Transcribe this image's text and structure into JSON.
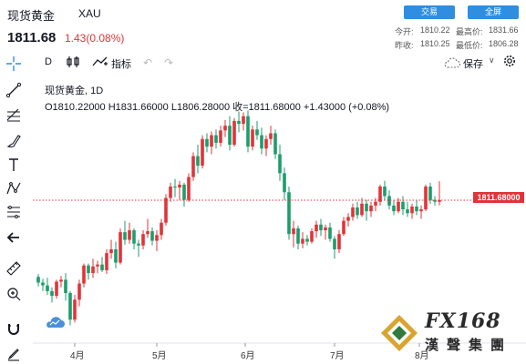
{
  "header": {
    "title": "现货黄金",
    "symbol": "XAU",
    "price": "1811.68",
    "change": "1.43(0.08%)",
    "trade_button": "交易",
    "fullscreen_button": "全屏",
    "open_label": "今开:",
    "open_value": "1810.22",
    "high_label": "最高价:",
    "high_value": "1831.66",
    "prev_close_label": "昨收:",
    "prev_close_value": "1810.25",
    "low_label": "最低价:",
    "low_value": "1806.28"
  },
  "toolbar": {
    "interval": "D",
    "indicators": "指标",
    "save": "保存"
  },
  "legend": {
    "line1": "现货黄金, 1D",
    "line2": "O1810.22000 H1831.66000 L1806.28000 收=1811.68000 +1.43000 (+0.08%)"
  },
  "price_label": "1811.68000",
  "watermark": "FX168 漢聲集團",
  "colors": {
    "up": "#e0343a",
    "down": "#1e9c6c",
    "accent": "#2f8ee0",
    "price_line": "#e0343a"
  },
  "chart_data": {
    "type": "candlestick",
    "title": "现货黄金, 1D",
    "x_ticks": [
      "4月",
      "5月",
      "6月",
      "7月",
      "8月"
    ],
    "ylim": [
      1670,
      1915
    ],
    "last_price": 1811.68,
    "candles": [
      [
        1731,
        1734,
        1721,
        1725
      ],
      [
        1725,
        1729,
        1716,
        1722
      ],
      [
        1722,
        1730,
        1712,
        1716
      ],
      [
        1716,
        1720,
        1704,
        1711
      ],
      [
        1711,
        1728,
        1708,
        1726
      ],
      [
        1726,
        1732,
        1720,
        1728
      ],
      [
        1728,
        1735,
        1706,
        1714
      ],
      [
        1714,
        1716,
        1680,
        1686
      ],
      [
        1686,
        1712,
        1683,
        1707
      ],
      [
        1707,
        1728,
        1700,
        1724
      ],
      [
        1724,
        1745,
        1720,
        1743
      ],
      [
        1743,
        1745,
        1728,
        1735
      ],
      [
        1735,
        1750,
        1730,
        1742
      ],
      [
        1742,
        1748,
        1735,
        1744
      ],
      [
        1744,
        1752,
        1736,
        1738
      ],
      [
        1738,
        1760,
        1734,
        1756
      ],
      [
        1756,
        1770,
        1750,
        1760
      ],
      [
        1760,
        1768,
        1740,
        1746
      ],
      [
        1746,
        1782,
        1744,
        1778
      ],
      [
        1778,
        1790,
        1765,
        1770
      ],
      [
        1770,
        1788,
        1766,
        1780
      ],
      [
        1780,
        1782,
        1760,
        1766
      ],
      [
        1766,
        1770,
        1752,
        1764
      ],
      [
        1764,
        1780,
        1760,
        1776
      ],
      [
        1776,
        1792,
        1772,
        1779
      ],
      [
        1779,
        1783,
        1764,
        1769
      ],
      [
        1769,
        1780,
        1758,
        1775
      ],
      [
        1775,
        1792,
        1770,
        1788
      ],
      [
        1788,
        1818,
        1785,
        1814
      ],
      [
        1814,
        1830,
        1810,
        1826
      ],
      [
        1826,
        1834,
        1815,
        1825
      ],
      [
        1825,
        1832,
        1812,
        1828
      ],
      [
        1828,
        1830,
        1805,
        1812
      ],
      [
        1812,
        1840,
        1810,
        1836
      ],
      [
        1836,
        1862,
        1832,
        1858
      ],
      [
        1858,
        1870,
        1840,
        1848
      ],
      [
        1848,
        1880,
        1845,
        1876
      ],
      [
        1876,
        1882,
        1862,
        1868
      ],
      [
        1868,
        1884,
        1860,
        1880
      ],
      [
        1880,
        1886,
        1866,
        1872
      ],
      [
        1872,
        1890,
        1868,
        1885
      ],
      [
        1885,
        1896,
        1878,
        1890
      ],
      [
        1890,
        1900,
        1864,
        1870
      ],
      [
        1870,
        1898,
        1868,
        1895
      ],
      [
        1895,
        1905,
        1883,
        1892
      ],
      [
        1892,
        1904,
        1885,
        1900
      ],
      [
        1900,
        1906,
        1862,
        1868
      ],
      [
        1868,
        1890,
        1864,
        1886
      ],
      [
        1886,
        1895,
        1875,
        1880
      ],
      [
        1880,
        1888,
        1860,
        1866
      ],
      [
        1866,
        1880,
        1858,
        1876
      ],
      [
        1876,
        1890,
        1870,
        1882
      ],
      [
        1882,
        1886,
        1855,
        1860
      ],
      [
        1860,
        1870,
        1832,
        1840
      ],
      [
        1840,
        1846,
        1812,
        1820
      ],
      [
        1820,
        1826,
        1770,
        1776
      ],
      [
        1776,
        1790,
        1762,
        1782
      ],
      [
        1782,
        1785,
        1760,
        1766
      ],
      [
        1766,
        1778,
        1761,
        1771
      ],
      [
        1771,
        1775,
        1764,
        1768
      ],
      [
        1768,
        1782,
        1766,
        1779
      ],
      [
        1779,
        1790,
        1772,
        1786
      ],
      [
        1786,
        1792,
        1774,
        1780
      ],
      [
        1780,
        1786,
        1770,
        1783
      ],
      [
        1783,
        1788,
        1768,
        1771
      ],
      [
        1771,
        1774,
        1750,
        1760
      ],
      [
        1760,
        1780,
        1756,
        1776
      ],
      [
        1776,
        1794,
        1774,
        1790
      ],
      [
        1790,
        1798,
        1784,
        1794
      ],
      [
        1794,
        1808,
        1790,
        1804
      ],
      [
        1804,
        1810,
        1792,
        1796
      ],
      [
        1796,
        1814,
        1794,
        1808
      ],
      [
        1808,
        1812,
        1790,
        1800
      ],
      [
        1800,
        1810,
        1794,
        1806
      ],
      [
        1806,
        1814,
        1800,
        1810
      ],
      [
        1810,
        1828,
        1806,
        1826
      ],
      [
        1826,
        1832,
        1812,
        1816
      ],
      [
        1816,
        1822,
        1802,
        1806
      ],
      [
        1806,
        1812,
        1796,
        1800
      ],
      [
        1800,
        1814,
        1798,
        1810
      ],
      [
        1810,
        1816,
        1796,
        1802
      ],
      [
        1802,
        1810,
        1794,
        1798
      ],
      [
        1798,
        1808,
        1792,
        1805
      ],
      [
        1805,
        1812,
        1796,
        1800
      ],
      [
        1800,
        1806,
        1792,
        1802
      ],
      [
        1802,
        1828,
        1800,
        1826
      ],
      [
        1826,
        1830,
        1808,
        1812
      ],
      [
        1812,
        1816,
        1806,
        1810
      ],
      [
        1810,
        1831.66,
        1806.28,
        1811.68
      ]
    ]
  }
}
